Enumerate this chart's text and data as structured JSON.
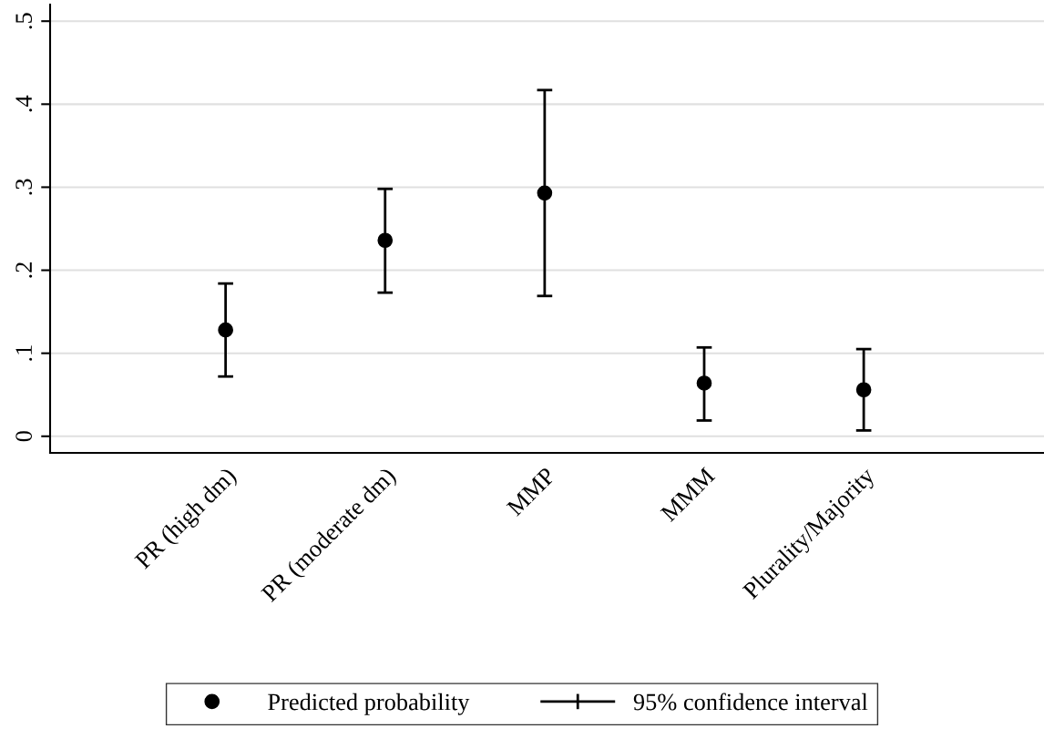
{
  "chart_data": {
    "type": "scatter",
    "categories": [
      "PR (high dm)",
      "PR (moderate dm)",
      "MMP",
      "MMM",
      "Plurality/Majority"
    ],
    "series": [
      {
        "name": "Predicted probability",
        "color": "#000000",
        "values": [
          0.128,
          0.236,
          0.293,
          0.064,
          0.056
        ],
        "errors": [
          [
            0.072,
            0.184
          ],
          [
            0.173,
            0.298
          ],
          [
            0.169,
            0.417
          ],
          [
            0.019,
            0.107
          ],
          [
            0.007,
            0.105
          ]
        ]
      }
    ],
    "ylim": [
      -0.02,
      0.52
    ],
    "yticks": [
      {
        "value": 0,
        "label": "0"
      },
      {
        "value": 0.1,
        "label": ".1"
      },
      {
        "value": 0.2,
        "label": ".2"
      },
      {
        "value": 0.3,
        "label": ".3"
      },
      {
        "value": 0.4,
        "label": ".4"
      },
      {
        "value": 0.5,
        "label": ".5"
      }
    ],
    "grid": "y",
    "legend": "bottom",
    "marker": "circle",
    "annotations": [
      "95% confidence interval"
    ]
  }
}
